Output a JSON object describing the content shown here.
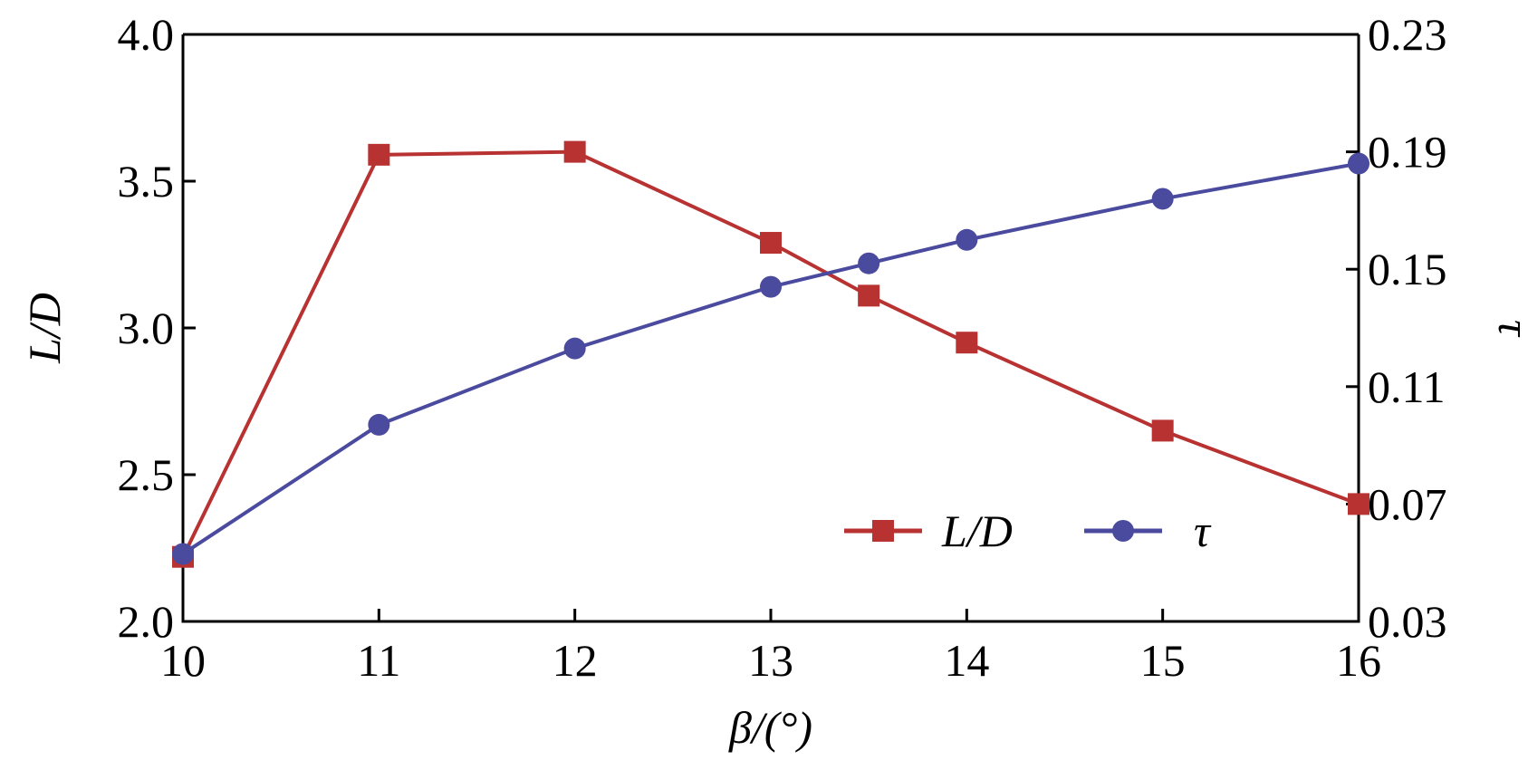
{
  "chart_data": {
    "type": "line",
    "x": [
      10,
      11,
      12,
      13,
      13.5,
      14,
      15,
      16
    ],
    "xlabel": "β/(°)",
    "xlim": [
      10,
      16
    ],
    "xticks": [
      10,
      11,
      12,
      13,
      14,
      15,
      16
    ],
    "xtick_labels": [
      "10",
      "11",
      "12",
      "13",
      "14",
      "15",
      "16"
    ],
    "ylabel_left": "L/D",
    "ylim_left": [
      2.0,
      4.0
    ],
    "yticks_left": [
      2.0,
      2.5,
      3.0,
      3.5,
      4.0
    ],
    "ytick_labels_left": [
      "2.0",
      "2.5",
      "3.0",
      "3.5",
      "4.0"
    ],
    "ylabel_right": "τ",
    "ylim_right": [
      0.03,
      0.23
    ],
    "yticks_right": [
      0.03,
      0.07,
      0.11,
      0.15,
      0.19,
      0.23
    ],
    "ytick_labels_right": [
      "0.03",
      "0.07",
      "0.11",
      "0.15",
      "0.19",
      "0.23"
    ],
    "legend_position": "lower-right",
    "series": [
      {
        "name": "L/D",
        "axis": "left",
        "marker": "square",
        "color": "#b83232",
        "values": [
          2.22,
          3.59,
          3.6,
          3.29,
          3.11,
          2.95,
          2.65,
          2.4
        ]
      },
      {
        "name": "τ",
        "axis": "right",
        "marker": "circle",
        "color": "#4a4a9e",
        "values": [
          0.053,
          0.097,
          0.123,
          0.144,
          0.152,
          0.16,
          0.174,
          0.186
        ]
      }
    ]
  }
}
